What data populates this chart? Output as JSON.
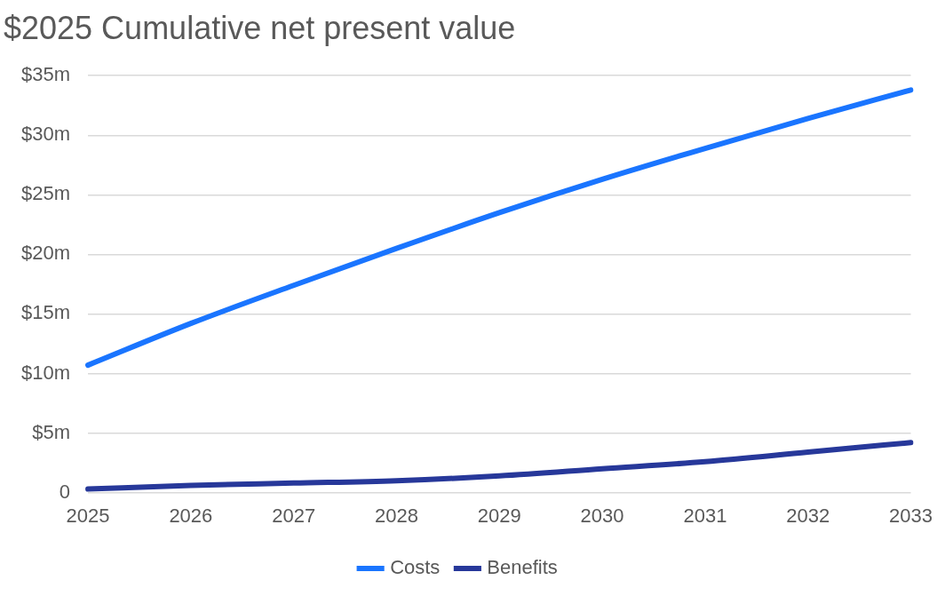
{
  "chart_data": {
    "type": "line",
    "title": "$2025 Cumulative net present value",
    "categories": [
      "2025",
      "2026",
      "2027",
      "2028",
      "2029",
      "2030",
      "2031",
      "2032",
      "2033"
    ],
    "series": [
      {
        "name": "Costs",
        "color": "#1a75ff",
        "values": [
          10.7,
          14.2,
          17.4,
          20.5,
          23.5,
          26.3,
          28.9,
          31.4,
          33.8
        ]
      },
      {
        "name": "Benefits",
        "color": "#27389a",
        "values": [
          0.3,
          0.6,
          0.8,
          1.0,
          1.4,
          2.0,
          2.6,
          3.4,
          4.2
        ]
      }
    ],
    "ylim": [
      0,
      35
    ],
    "yticks": [
      {
        "value": 0,
        "label": "0"
      },
      {
        "value": 5,
        "label": "$5m"
      },
      {
        "value": 10,
        "label": "$10m"
      },
      {
        "value": 15,
        "label": "$15m"
      },
      {
        "value": 20,
        "label": "$20m"
      },
      {
        "value": 25,
        "label": "$25m"
      },
      {
        "value": 30,
        "label": "$30m"
      },
      {
        "value": 35,
        "label": "$35m"
      }
    ],
    "grid": "y",
    "legend": "bottom",
    "marker": "none",
    "line_style": "solid"
  }
}
